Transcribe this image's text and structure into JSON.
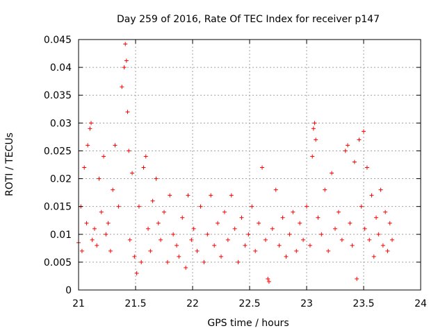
{
  "chart_data": {
    "type": "scatter",
    "title": "Day 259 of 2016, Rate Of TEC Index for receiver p147",
    "xlabel": "GPS time / hours",
    "ylabel": "ROTI / TECUs",
    "xlim": [
      21,
      24
    ],
    "ylim": [
      0,
      0.045
    ],
    "xticks": [
      21,
      21.5,
      22,
      22.5,
      23,
      23.5,
      24
    ],
    "xtick_labels": [
      "21",
      "21.5",
      "22",
      "22.5",
      "23",
      "23.5",
      "24"
    ],
    "yticks": [
      0,
      0.005,
      0.01,
      0.015,
      0.02,
      0.025,
      0.03,
      0.035,
      0.04,
      0.045
    ],
    "ytick_labels": [
      "0",
      "0.005",
      "0.01",
      "0.015",
      "0.02",
      "0.025",
      "0.03",
      "0.035",
      "0.04",
      "0.045"
    ],
    "grid": true,
    "marker": "+",
    "color": "#ff0000",
    "series": [
      {
        "name": "ROTI p147",
        "x": [
          21.0,
          21.02,
          21.03,
          21.05,
          21.07,
          21.08,
          21.1,
          21.11,
          21.12,
          21.14,
          21.16,
          21.18,
          21.2,
          21.22,
          21.24,
          21.26,
          21.28,
          21.3,
          21.32,
          21.35,
          21.38,
          21.4,
          21.41,
          21.42,
          21.43,
          21.44,
          21.45,
          21.47,
          21.49,
          21.51,
          21.53,
          21.55,
          21.57,
          21.59,
          21.61,
          21.63,
          21.65,
          21.68,
          21.7,
          21.72,
          21.75,
          21.78,
          21.8,
          21.83,
          21.86,
          21.88,
          21.91,
          21.94,
          21.96,
          21.99,
          22.01,
          22.04,
          22.07,
          22.1,
          22.13,
          22.16,
          22.19,
          22.22,
          22.25,
          22.28,
          22.31,
          22.34,
          22.37,
          22.4,
          22.43,
          22.46,
          22.49,
          22.52,
          22.55,
          22.58,
          22.61,
          22.64,
          22.66,
          22.67,
          22.7,
          22.73,
          22.76,
          22.79,
          22.82,
          22.85,
          22.88,
          22.91,
          22.94,
          22.97,
          23.0,
          23.03,
          23.05,
          23.06,
          23.07,
          23.08,
          23.1,
          23.13,
          23.16,
          23.19,
          23.22,
          23.25,
          23.28,
          23.31,
          23.34,
          23.36,
          23.38,
          23.4,
          23.42,
          23.44,
          23.46,
          23.48,
          23.5,
          23.51,
          23.53,
          23.55,
          23.57,
          23.59,
          23.61,
          23.63,
          23.65,
          23.67,
          23.69,
          23.71,
          23.73,
          23.75
        ],
        "y": [
          0.0085,
          0.015,
          0.007,
          0.022,
          0.012,
          0.026,
          0.029,
          0.03,
          0.009,
          0.011,
          0.008,
          0.02,
          0.014,
          0.024,
          0.01,
          0.012,
          0.007,
          0.018,
          0.026,
          0.015,
          0.0365,
          0.04,
          0.0442,
          0.0412,
          0.032,
          0.025,
          0.009,
          0.021,
          0.006,
          0.003,
          0.015,
          0.005,
          0.022,
          0.024,
          0.011,
          0.007,
          0.016,
          0.02,
          0.012,
          0.009,
          0.014,
          0.005,
          0.017,
          0.01,
          0.008,
          0.006,
          0.013,
          0.004,
          0.017,
          0.009,
          0.011,
          0.007,
          0.015,
          0.005,
          0.01,
          0.017,
          0.008,
          0.012,
          0.006,
          0.014,
          0.009,
          0.017,
          0.011,
          0.005,
          0.013,
          0.008,
          0.01,
          0.015,
          0.007,
          0.012,
          0.022,
          0.009,
          0.002,
          0.0015,
          0.011,
          0.018,
          0.008,
          0.013,
          0.006,
          0.01,
          0.014,
          0.007,
          0.012,
          0.009,
          0.015,
          0.008,
          0.024,
          0.029,
          0.03,
          0.027,
          0.013,
          0.01,
          0.018,
          0.007,
          0.021,
          0.011,
          0.014,
          0.009,
          0.025,
          0.026,
          0.012,
          0.008,
          0.023,
          0.002,
          0.027,
          0.015,
          0.0285,
          0.011,
          0.022,
          0.009,
          0.017,
          0.006,
          0.013,
          0.01,
          0.018,
          0.008,
          0.014,
          0.007,
          0.012,
          0.009
        ]
      }
    ]
  }
}
